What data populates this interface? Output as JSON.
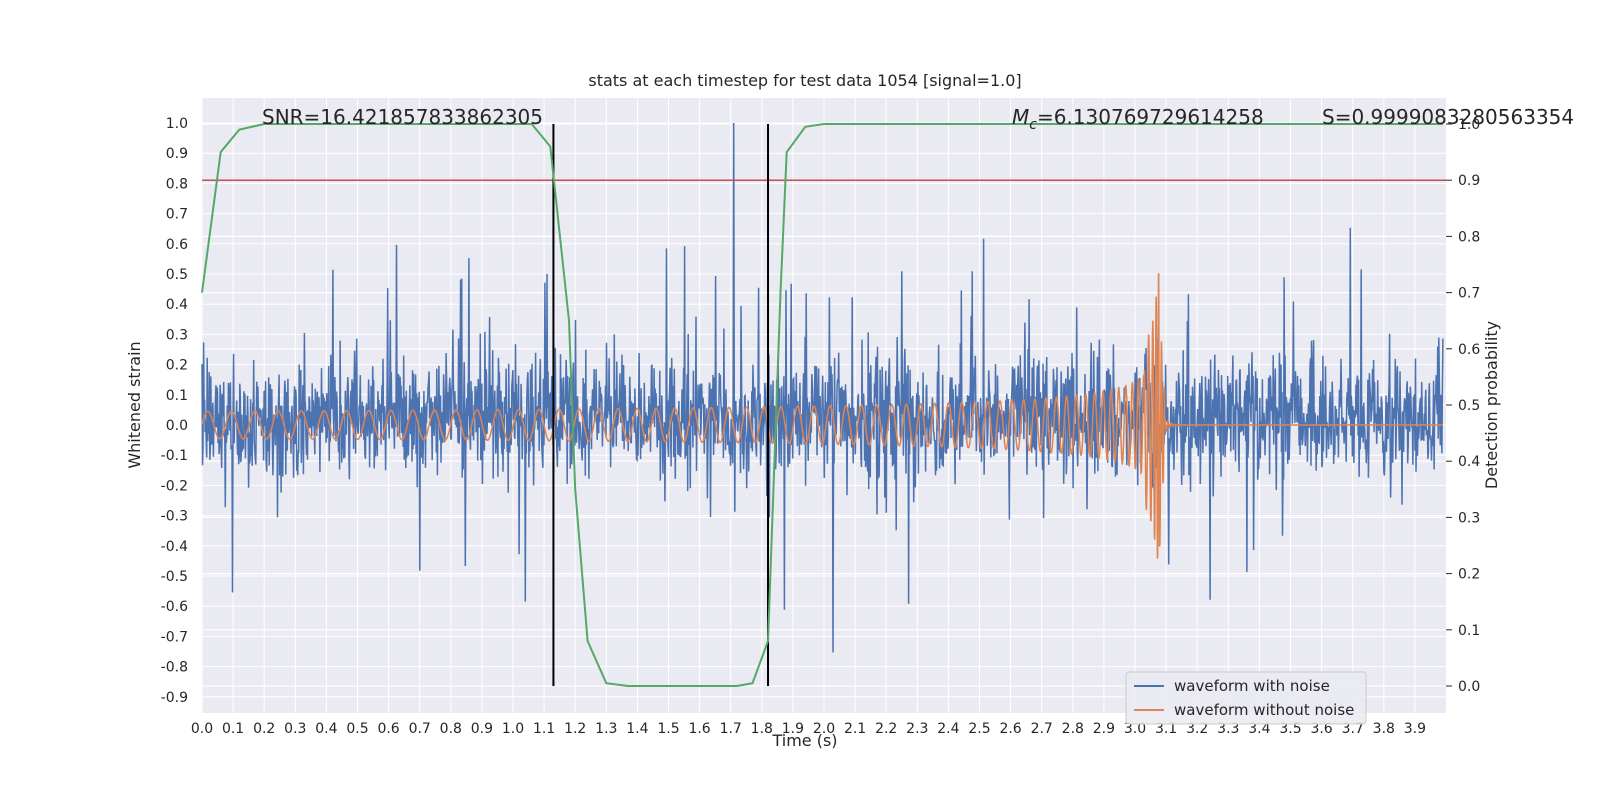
{
  "chart_data": {
    "type": "line",
    "title": "stats at each timestep for test data 1054 [signal=1.0]",
    "xlabel": "Time (s)",
    "ylabel_left": "Whitened strain",
    "ylabel_right": "Detection probability",
    "xlim": [
      0.0,
      4.0
    ],
    "ylim_left": [
      -0.95,
      1.1
    ],
    "ylim_right": [
      -0.05,
      1.05
    ],
    "x_ticks": [
      "0.0",
      "0.1",
      "0.2",
      "0.3",
      "0.4",
      "0.5",
      "0.6",
      "0.7",
      "0.8",
      "0.9",
      "1.0",
      "1.1",
      "1.2",
      "1.3",
      "1.4",
      "1.5",
      "1.6",
      "1.7",
      "1.8",
      "1.9",
      "2.0",
      "2.1",
      "2.2",
      "2.3",
      "2.4",
      "2.5",
      "2.6",
      "2.7",
      "2.8",
      "2.9",
      "3.0",
      "3.1",
      "3.2",
      "3.3",
      "3.4",
      "3.5",
      "3.6",
      "3.7",
      "3.8",
      "3.9"
    ],
    "y_ticks_left": [
      "1.0",
      "0.9",
      "0.8",
      "0.7",
      "0.6",
      "0.5",
      "0.4",
      "0.3",
      "0.2",
      "0.1",
      "0.0",
      "-0.1",
      "-0.2",
      "-0.3",
      "-0.4",
      "-0.5",
      "-0.6",
      "-0.7",
      "-0.8",
      "-0.9"
    ],
    "y_ticks_right": [
      "1.0",
      "0.9",
      "0.8",
      "0.7",
      "0.6",
      "0.5",
      "0.4",
      "0.3",
      "0.2",
      "0.1",
      "0.0"
    ],
    "annotations": {
      "snr": "SNR=16.421857833862305",
      "mc_symbol": "M",
      "mc_subscript": "c",
      "mc_value": "=6.130769729614258",
      "s": "S=0.9999083280563354"
    },
    "threshold_right": 0.9,
    "vlines_x": [
      1.13,
      1.82
    ],
    "grid": true,
    "legend_placement": "lower-right",
    "series": [
      {
        "name": "waveform with noise",
        "color": "#4c72b0",
        "axis": "left",
        "kind": "noise",
        "amplitude_peak": 1.0,
        "amplitude_min": -0.85
      },
      {
        "name": "waveform without noise",
        "color": "#dd8452",
        "axis": "left",
        "kind": "chirp",
        "merger_x": 3.08,
        "amplitude_start": 0.045,
        "amplitude_peak": 0.5,
        "amplitude_trough": -0.4
      },
      {
        "name": "",
        "color": "#55a868",
        "axis": "right",
        "kind": "probability",
        "x": [
          0.0,
          0.06,
          0.12,
          0.2,
          1.06,
          1.12,
          1.18,
          1.2,
          1.24,
          1.3,
          1.37,
          1.45,
          1.6,
          1.72,
          1.77,
          1.82,
          1.86,
          1.88,
          1.94,
          2.0,
          3.99
        ],
        "y": [
          0.7,
          0.95,
          0.99,
          1.0,
          1.0,
          0.96,
          0.65,
          0.35,
          0.08,
          0.005,
          0.0,
          0.0,
          0.0,
          0.0,
          0.005,
          0.08,
          0.7,
          0.95,
          0.995,
          1.0,
          1.0
        ]
      }
    ],
    "colors": {
      "background": "#eaeaf2",
      "grid": "#ffffff",
      "threshold": "#c44e52",
      "vline": "#000000",
      "probability": "#55a868"
    }
  }
}
